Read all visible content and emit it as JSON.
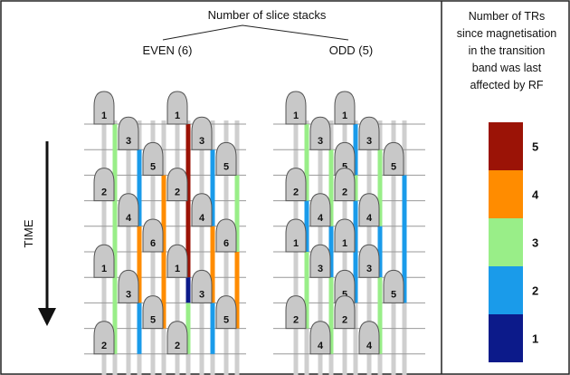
{
  "header": {
    "title": "Number of slice stacks",
    "even_label": "EVEN (6)",
    "odd_label": "ODD (5)",
    "time_label": "TIME"
  },
  "legend": {
    "title_lines": [
      "Number of TRs",
      "since magnetisation",
      "in the transition",
      "band was last",
      "affected by RF"
    ],
    "levels": [
      {
        "value": "5",
        "color": "#9b1306"
      },
      {
        "value": "4",
        "color": "#ff8c00"
      },
      {
        "value": "3",
        "color": "#99ee88"
      },
      {
        "value": "2",
        "color": "#1a9bea"
      },
      {
        "value": "1",
        "color": "#0c1a8a"
      }
    ]
  },
  "colors": {
    "pulse_fill": "#c8c8c8",
    "pulse_stroke": "#555555",
    "grid_line": "#999999",
    "line_gray": "#cfcfcf",
    "arrow": "#111111"
  },
  "panels": [
    {
      "id": "even",
      "pulses": [
        {
          "label": "1",
          "col": 0,
          "row": 0
        },
        {
          "label": "3",
          "col": 1,
          "row": 1
        },
        {
          "label": "5",
          "col": 2,
          "row": 2
        },
        {
          "label": "2",
          "col": 0,
          "row": 3
        },
        {
          "label": "4",
          "col": 1,
          "row": 4
        },
        {
          "label": "6",
          "col": 2,
          "row": 5
        },
        {
          "label": "1",
          "col": 3,
          "row": 0
        },
        {
          "label": "3",
          "col": 4,
          "row": 1
        },
        {
          "label": "5",
          "col": 5,
          "row": 2
        },
        {
          "label": "2",
          "col": 3,
          "row": 3
        },
        {
          "label": "4",
          "col": 4,
          "row": 4
        },
        {
          "label": "6",
          "col": 5,
          "row": 5
        },
        {
          "label": "1",
          "col": 0,
          "row": 6
        },
        {
          "label": "3",
          "col": 1,
          "row": 7
        },
        {
          "label": "5",
          "col": 2,
          "row": 8
        },
        {
          "label": "2",
          "col": 0,
          "row": 9
        },
        {
          "label": "1",
          "col": 3,
          "row": 6
        },
        {
          "label": "3",
          "col": 4,
          "row": 7
        },
        {
          "label": "5",
          "col": 5,
          "row": 8
        },
        {
          "label": "2",
          "col": 3,
          "row": 9
        }
      ],
      "segments": [
        {
          "col": 0,
          "row_from": 0,
          "row_to": 3,
          "color": "#99ee88"
        },
        {
          "col": 0,
          "row_from": 3,
          "row_to": 6,
          "color": "#99ee88"
        },
        {
          "col": 0,
          "row_from": 6,
          "row_to": 9,
          "color": "#99ee88"
        },
        {
          "col": 1,
          "row_from": 1,
          "row_to": 2,
          "color": "#1a9bea"
        },
        {
          "col": 1,
          "row_from": 2,
          "row_to": 4,
          "color": "#1a9bea"
        },
        {
          "col": 1,
          "row_from": 4,
          "row_to": 7,
          "color": "#ff8c00"
        },
        {
          "col": 1,
          "row_from": 7,
          "row_to": 9,
          "color": "#1a9bea"
        },
        {
          "col": 2,
          "row_from": 2,
          "row_to": 5,
          "color": "#ff8c00"
        },
        {
          "col": 2,
          "row_from": 5,
          "row_to": 8,
          "color": "#ff8c00"
        },
        {
          "col": 3,
          "row_from": 0,
          "row_to": 6,
          "color": "#9b1306"
        },
        {
          "col": 3,
          "row_from": 6,
          "row_to": 7,
          "color": "#0c1a8a"
        },
        {
          "col": 3,
          "row_from": 7,
          "row_to": 9,
          "color": "#99ee88"
        },
        {
          "col": 4,
          "row_from": 1,
          "row_to": 4,
          "color": "#1a9bea"
        },
        {
          "col": 4,
          "row_from": 4,
          "row_to": 7,
          "color": "#ff8c00"
        },
        {
          "col": 4,
          "row_from": 7,
          "row_to": 9,
          "color": "#1a9bea"
        },
        {
          "col": 5,
          "row_from": 2,
          "row_to": 5,
          "color": "#99ee88"
        },
        {
          "col": 5,
          "row_from": 5,
          "row_to": 8,
          "color": "#ff8c00"
        }
      ]
    },
    {
      "id": "odd",
      "pulses": [
        {
          "label": "1",
          "col": 0,
          "row": 0
        },
        {
          "label": "3",
          "col": 1,
          "row": 1
        },
        {
          "label": "5",
          "col": 2,
          "row": 2
        },
        {
          "label": "2",
          "col": 0,
          "row": 3
        },
        {
          "label": "4",
          "col": 1,
          "row": 4
        },
        {
          "label": "1",
          "col": 2,
          "row": 0
        },
        {
          "label": "3",
          "col": 3,
          "row": 1
        },
        {
          "label": "5",
          "col": 4,
          "row": 2
        },
        {
          "label": "2",
          "col": 2,
          "row": 3
        },
        {
          "label": "4",
          "col": 3,
          "row": 4
        },
        {
          "label": "1",
          "col": 0,
          "row": 5
        },
        {
          "label": "3",
          "col": 1,
          "row": 6
        },
        {
          "label": "5",
          "col": 2,
          "row": 7
        },
        {
          "label": "2",
          "col": 0,
          "row": 8
        },
        {
          "label": "4",
          "col": 1,
          "row": 9
        },
        {
          "label": "1",
          "col": 2,
          "row": 5
        },
        {
          "label": "3",
          "col": 3,
          "row": 6
        },
        {
          "label": "5",
          "col": 4,
          "row": 7
        },
        {
          "label": "2",
          "col": 2,
          "row": 8
        },
        {
          "label": "4",
          "col": 3,
          "row": 9
        }
      ],
      "segments": [
        {
          "col": 0,
          "row_from": 0,
          "row_to": 3,
          "color": "#99ee88"
        },
        {
          "col": 0,
          "row_from": 3,
          "row_to": 5,
          "color": "#1a9bea"
        },
        {
          "col": 0,
          "row_from": 5,
          "row_to": 8,
          "color": "#99ee88"
        },
        {
          "col": 1,
          "row_from": 1,
          "row_to": 4,
          "color": "#99ee88"
        },
        {
          "col": 1,
          "row_from": 4,
          "row_to": 6,
          "color": "#1a9bea"
        },
        {
          "col": 1,
          "row_from": 6,
          "row_to": 9,
          "color": "#99ee88"
        },
        {
          "col": 2,
          "row_from": 0,
          "row_to": 2,
          "color": "#1a9bea"
        },
        {
          "col": 2,
          "row_from": 2,
          "row_to": 3,
          "color": "#99ee88"
        },
        {
          "col": 2,
          "row_from": 3,
          "row_to": 5,
          "color": "#1a9bea"
        },
        {
          "col": 2,
          "row_from": 5,
          "row_to": 7,
          "color": "#1a9bea"
        },
        {
          "col": 3,
          "row_from": 1,
          "row_to": 4,
          "color": "#99ee88"
        },
        {
          "col": 3,
          "row_from": 4,
          "row_to": 6,
          "color": "#1a9bea"
        },
        {
          "col": 3,
          "row_from": 6,
          "row_to": 9,
          "color": "#99ee88"
        },
        {
          "col": 4,
          "row_from": 2,
          "row_to": 7,
          "color": "#1a9bea"
        }
      ]
    }
  ]
}
